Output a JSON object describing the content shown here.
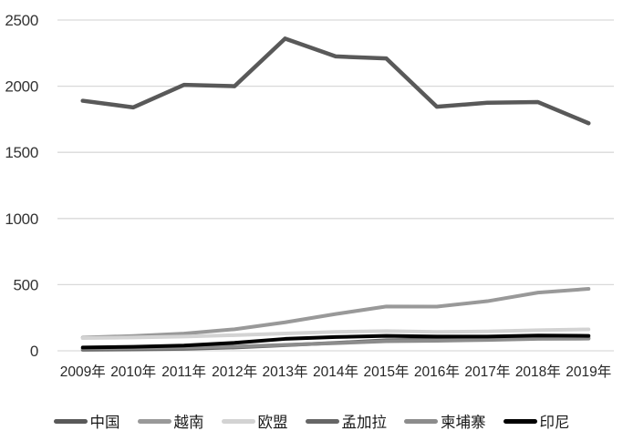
{
  "chart_data": {
    "type": "line",
    "title": "",
    "categories": [
      "2009年",
      "2010年",
      "2011年",
      "2012年",
      "2013年",
      "2014年",
      "2015年",
      "2016年",
      "2017年",
      "2018年",
      "2019年"
    ],
    "series": [
      {
        "name": "中国",
        "color": "#595959",
        "values": [
          1890,
          1840,
          2010,
          2000,
          2360,
          2225,
          2210,
          1845,
          1875,
          1880,
          1720
        ]
      },
      {
        "name": "越南",
        "color": "#999999",
        "values": [
          100,
          112,
          130,
          163,
          215,
          278,
          335,
          334,
          375,
          440,
          468
        ]
      },
      {
        "name": "欧盟",
        "color": "#d3d3d3",
        "values": [
          96,
          101,
          108,
          118,
          131,
          143,
          149,
          143,
          146,
          156,
          162
        ]
      },
      {
        "name": "孟加拉",
        "color": "#666666",
        "values": [
          8,
          10,
          15,
          25,
          42,
          60,
          80,
          85,
          90,
          95,
          96
        ]
      },
      {
        "name": "柬埔寨",
        "color": "#8c8c8c",
        "values": [
          18,
          20,
          24,
          32,
          45,
          58,
          72,
          76,
          82,
          90,
          92
        ]
      },
      {
        "name": "印尼",
        "color": "#000000",
        "values": [
          25,
          30,
          40,
          60,
          90,
          104,
          113,
          108,
          108,
          115,
          113
        ]
      }
    ],
    "xlabel": "",
    "ylabel": "",
    "ylim": [
      0,
      2500
    ],
    "yticks": [
      0,
      500,
      1000,
      1500,
      2000,
      2500
    ],
    "grid": "horizontal",
    "gridline_color": "#d9d9d9",
    "axis_text_color": "#333333",
    "background": "#ffffff",
    "legend_position": "bottom"
  }
}
